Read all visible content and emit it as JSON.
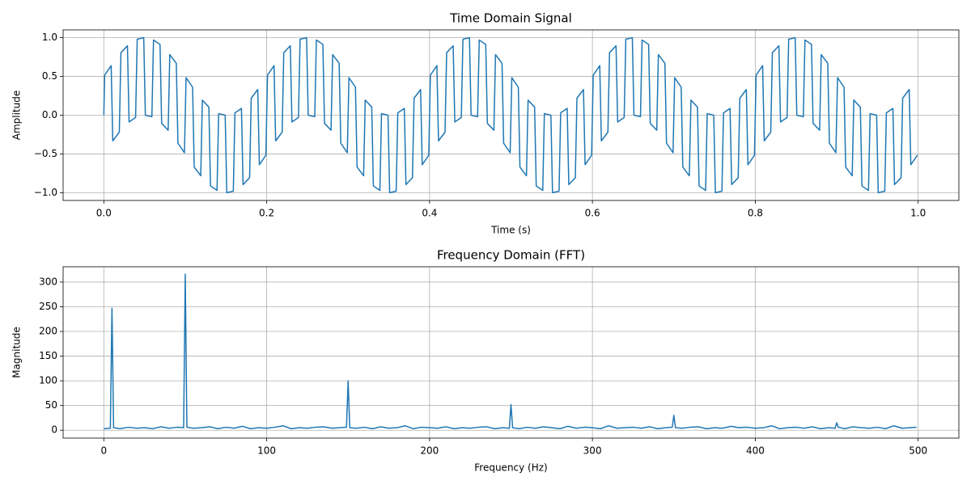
{
  "chart_data": [
    {
      "type": "line",
      "title": "Time Domain Signal",
      "x_label": "Time (s)",
      "y_label": "Amplitude",
      "xlim": [
        -0.05,
        1.05
      ],
      "ylim": [
        -1.1,
        1.1
      ],
      "grid": true,
      "xticks": [
        {
          "value": 0,
          "label": "0.0"
        },
        0.2,
        0.4,
        0.6,
        0.8,
        {
          "value": 1,
          "label": "1.0"
        }
      ],
      "yticks": [
        {
          "value": -1,
          "label": "−1.0"
        },
        {
          "value": -0.5,
          "label": "−0.5"
        },
        {
          "value": 0,
          "label": "0.0"
        },
        0.5,
        {
          "value": 1,
          "label": "1.0"
        }
      ],
      "x": [
        0,
        0.001,
        0.009,
        0.011,
        0.019,
        0.021,
        0.029,
        0.031,
        0.039,
        0.041,
        0.049,
        0.051,
        0.059,
        0.061,
        0.069,
        0.071,
        0.079,
        0.081,
        0.089,
        0.091,
        0.099,
        0.101,
        0.109,
        0.111,
        0.119,
        0.121,
        0.129,
        0.131,
        0.139,
        0.141,
        0.149,
        0.151,
        0.159,
        0.161,
        0.169,
        0.171,
        0.179,
        0.181,
        0.189,
        0.191,
        0.199,
        0.201,
        0.209,
        0.211,
        0.219,
        0.221,
        0.229,
        0.231,
        0.239,
        0.241,
        0.249,
        0.251,
        0.259,
        0.261,
        0.269,
        0.271,
        0.279,
        0.281,
        0.289,
        0.291,
        0.299,
        0.301,
        0.309,
        0.311,
        0.319,
        0.321,
        0.329,
        0.331,
        0.339,
        0.341,
        0.349,
        0.351,
        0.359,
        0.361,
        0.369,
        0.371,
        0.379,
        0.381,
        0.389,
        0.391,
        0.399,
        0.401,
        0.409,
        0.411,
        0.419,
        0.421,
        0.429,
        0.431,
        0.439,
        0.441,
        0.449,
        0.451,
        0.459,
        0.461,
        0.469,
        0.471,
        0.479,
        0.481,
        0.489,
        0.491,
        0.499,
        0.501,
        0.509,
        0.511,
        0.519,
        0.521,
        0.529,
        0.531,
        0.539,
        0.541,
        0.549,
        0.551,
        0.559,
        0.561,
        0.569,
        0.571,
        0.579,
        0.581,
        0.589,
        0.591,
        0.599,
        0.601,
        0.609,
        0.611,
        0.619,
        0.621,
        0.629,
        0.631,
        0.639,
        0.641,
        0.649,
        0.651,
        0.659,
        0.661,
        0.669,
        0.671,
        0.679,
        0.681,
        0.689,
        0.691,
        0.699,
        0.701,
        0.709,
        0.711,
        0.719,
        0.721,
        0.729,
        0.731,
        0.739,
        0.741,
        0.749,
        0.751,
        0.759,
        0.761,
        0.769,
        0.771,
        0.779,
        0.781,
        0.789,
        0.791,
        0.799,
        0.801,
        0.809,
        0.811,
        0.819,
        0.821,
        0.829,
        0.831,
        0.839,
        0.841,
        0.849,
        0.851,
        0.859,
        0.861,
        0.869,
        0.871,
        0.879,
        0.881,
        0.889,
        0.891,
        0.899,
        0.901,
        0.909,
        0.911,
        0.919,
        0.921,
        0.929,
        0.931,
        0.939,
        0.941,
        0.949,
        0.951,
        0.959,
        0.961,
        0.969,
        0.971,
        0.979,
        0.981,
        0.989,
        0.991,
        0.999
      ],
      "series": [
        {
          "color": "#1f77b4",
          "values": [
            0,
            0.516,
            0.639,
            -0.331,
            -0.219,
            0.806,
            0.895,
            -0.087,
            -0.03,
            0.98,
            1.0,
            0.0,
            -0.02,
            0.97,
            0.913,
            -0.105,
            -0.194,
            0.781,
            0.669,
            -0.361,
            -0.484,
            0.484,
            0.361,
            -0.669,
            -0.781,
            0.194,
            0.105,
            -0.913,
            -0.97,
            0.02,
            0.0,
            -1.0,
            -0.98,
            0.03,
            0.087,
            -0.895,
            -0.806,
            0.219,
            0.331,
            -0.639,
            -0.516,
            0.516,
            0.639,
            -0.331,
            -0.219,
            0.806,
            0.895,
            -0.087,
            -0.03,
            0.98,
            1.0,
            0.0,
            -0.02,
            0.97,
            0.913,
            -0.105,
            -0.194,
            0.781,
            0.669,
            -0.361,
            -0.484,
            0.484,
            0.361,
            -0.669,
            -0.781,
            0.194,
            0.105,
            -0.913,
            -0.97,
            0.02,
            0.0,
            -1.0,
            -0.98,
            0.03,
            0.087,
            -0.895,
            -0.806,
            0.219,
            0.331,
            -0.639,
            -0.516,
            0.516,
            0.639,
            -0.331,
            -0.219,
            0.806,
            0.895,
            -0.087,
            -0.03,
            0.98,
            1.0,
            0.0,
            -0.02,
            0.97,
            0.913,
            -0.105,
            -0.194,
            0.781,
            0.669,
            -0.361,
            -0.484,
            0.484,
            0.361,
            -0.669,
            -0.781,
            0.194,
            0.105,
            -0.913,
            -0.97,
            0.02,
            0.0,
            -1.0,
            -0.98,
            0.03,
            0.087,
            -0.895,
            -0.806,
            0.219,
            0.331,
            -0.639,
            -0.516,
            0.516,
            0.639,
            -0.331,
            -0.219,
            0.806,
            0.895,
            -0.087,
            -0.03,
            0.98,
            1.0,
            0.0,
            -0.02,
            0.97,
            0.913,
            -0.105,
            -0.194,
            0.781,
            0.669,
            -0.361,
            -0.484,
            0.484,
            0.361,
            -0.669,
            -0.781,
            0.194,
            0.105,
            -0.913,
            -0.97,
            0.02,
            0.0,
            -1.0,
            -0.98,
            0.03,
            0.087,
            -0.895,
            -0.806,
            0.219,
            0.331,
            -0.639,
            -0.516,
            0.516,
            0.639,
            -0.331,
            -0.219,
            0.806,
            0.895,
            -0.087,
            -0.03,
            0.98,
            1.0,
            0.0,
            -0.02,
            0.97,
            0.913,
            -0.105,
            -0.194,
            0.781,
            0.669,
            -0.361,
            -0.484,
            0.484,
            0.361,
            -0.669,
            -0.781,
            0.194,
            0.105,
            -0.913,
            -0.97,
            0.02,
            0.0,
            -1.0,
            -0.98,
            0.03,
            0.087,
            -0.895,
            -0.806,
            0.219,
            0.331,
            -0.639,
            -0.516
          ]
        }
      ]
    },
    {
      "type": "line",
      "title": "Frequency Domain (FFT)",
      "x_label": "Frequency (Hz)",
      "y_label": "Magnitude",
      "xlim": [
        -25,
        525
      ],
      "ylim": [
        -16,
        331
      ],
      "grid": true,
      "xticks": [
        0,
        100,
        200,
        300,
        400,
        500
      ],
      "yticks": [
        0,
        50,
        100,
        150,
        200,
        250,
        300
      ],
      "x": [
        0,
        4,
        5,
        6,
        10,
        15,
        20,
        25,
        30,
        35,
        40,
        45,
        49,
        50,
        51,
        55,
        60,
        65,
        70,
        75,
        80,
        85,
        90,
        95,
        100,
        105,
        110,
        115,
        120,
        125,
        130,
        135,
        140,
        145,
        149,
        150,
        151,
        155,
        160,
        165,
        170,
        175,
        180,
        185,
        190,
        195,
        200,
        205,
        210,
        215,
        220,
        225,
        230,
        235,
        240,
        245,
        249,
        250,
        251,
        255,
        260,
        265,
        270,
        275,
        280,
        285,
        290,
        295,
        300,
        305,
        310,
        315,
        320,
        325,
        330,
        335,
        340,
        345,
        349,
        350,
        351,
        355,
        360,
        365,
        370,
        375,
        380,
        385,
        390,
        395,
        400,
        405,
        410,
        415,
        420,
        425,
        430,
        435,
        440,
        445,
        449,
        450,
        451,
        455,
        460,
        465,
        470,
        475,
        480,
        485,
        490,
        495,
        499
      ],
      "series": [
        {
          "color": "#1f77b4",
          "values": [
            3,
            4,
            247,
            5,
            3,
            6,
            4,
            5,
            3,
            7,
            4,
            6,
            5,
            316,
            6,
            4,
            5,
            7,
            3,
            6,
            4,
            8,
            3,
            5,
            4,
            6,
            9,
            3,
            5,
            4,
            6,
            7,
            4,
            5,
            6,
            100,
            5,
            4,
            6,
            3,
            7,
            4,
            5,
            9,
            3,
            6,
            5,
            4,
            7,
            3,
            5,
            4,
            6,
            7,
            3,
            5,
            4,
            52,
            5,
            3,
            6,
            4,
            7,
            5,
            3,
            8,
            4,
            6,
            5,
            3,
            9,
            4,
            5,
            6,
            4,
            7,
            3,
            5,
            6,
            30,
            5,
            4,
            6,
            7,
            3,
            5,
            4,
            8,
            5,
            6,
            4,
            5,
            9,
            3,
            5,
            6,
            4,
            7,
            3,
            5,
            4,
            15,
            6,
            3,
            7,
            5,
            4,
            6,
            3,
            9,
            4,
            5,
            6
          ]
        }
      ]
    }
  ]
}
